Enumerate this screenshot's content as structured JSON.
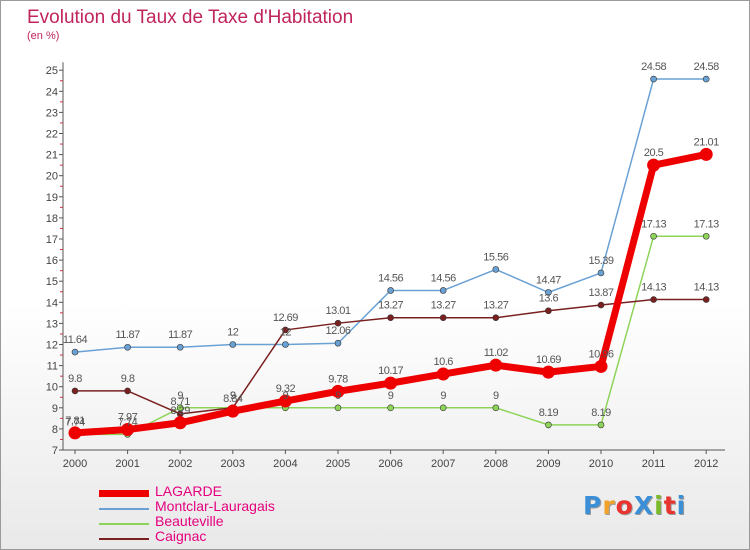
{
  "header": {
    "title": "Evolution du Taux de Taxe d'Habitation",
    "unit": "(en %)"
  },
  "logo": {
    "text": "ProXiti",
    "colors": [
      "#3b8fd6",
      "#f0a22a",
      "#e8332e",
      "#3b8fd6",
      "#7ab929",
      "#e8332e",
      "#3b8fd6"
    ]
  },
  "chart_data": {
    "type": "line",
    "x": [
      2000,
      2001,
      2002,
      2003,
      2004,
      2005,
      2006,
      2007,
      2008,
      2009,
      2010,
      2011,
      2012
    ],
    "ylim": [
      7,
      25
    ],
    "yticks": [
      7,
      8,
      9,
      10,
      11,
      12,
      13,
      14,
      15,
      16,
      17,
      18,
      19,
      20,
      21,
      22,
      23,
      24,
      25
    ],
    "grid": false,
    "legend_position": "bottom-left",
    "series": [
      {
        "name": "LAGARDE",
        "color": "#ee0000",
        "thick": true,
        "values": [
          7.81,
          7.97,
          8.29,
          8.84,
          9.32,
          9.78,
          10.17,
          10.6,
          11.02,
          10.69,
          10.96,
          20.5,
          21.01
        ],
        "labels": [
          "7.81",
          "7.97",
          "8.29",
          "8.84",
          "9.32",
          "9.78",
          "10.17",
          "10.6",
          "11.02",
          "10.69",
          "10.96",
          "20.5",
          "21.01"
        ]
      },
      {
        "name": "Montclar-Lauragais",
        "color": "#6aa1d4",
        "values": [
          11.64,
          11.87,
          11.87,
          12,
          12,
          12.06,
          14.56,
          14.56,
          15.56,
          14.47,
          15.39,
          24.58,
          24.58
        ],
        "labels": [
          "11.64",
          "11.87",
          "11.87",
          "12",
          "12",
          "12.06",
          "14.56",
          "14.56",
          "15.56",
          "14.47",
          "15.39",
          "24.58",
          "24.58"
        ]
      },
      {
        "name": "Beauteville",
        "color": "#8ed35a",
        "values": [
          7.74,
          7.74,
          9,
          9,
          9,
          9,
          9,
          9,
          9,
          8.19,
          8.19,
          17.13,
          17.13
        ],
        "labels": [
          "7.74",
          "7.74",
          "9",
          "9",
          "9",
          "9",
          "9",
          "9",
          "9",
          "8.19",
          "8.19",
          "17.13",
          "17.13"
        ]
      },
      {
        "name": "Caignac",
        "color": "#7a2020",
        "values": [
          9.8,
          9.8,
          8.71,
          9,
          12.69,
          13.01,
          13.27,
          13.27,
          13.27,
          13.6,
          13.87,
          14.13,
          14.13
        ],
        "labels": [
          "9.8",
          "9.8",
          "8.71",
          "9",
          "12.69",
          "13.01",
          "13.27",
          "13.27",
          "13.27",
          "13.6",
          "13.87",
          "14.13",
          "14.13"
        ]
      }
    ]
  }
}
